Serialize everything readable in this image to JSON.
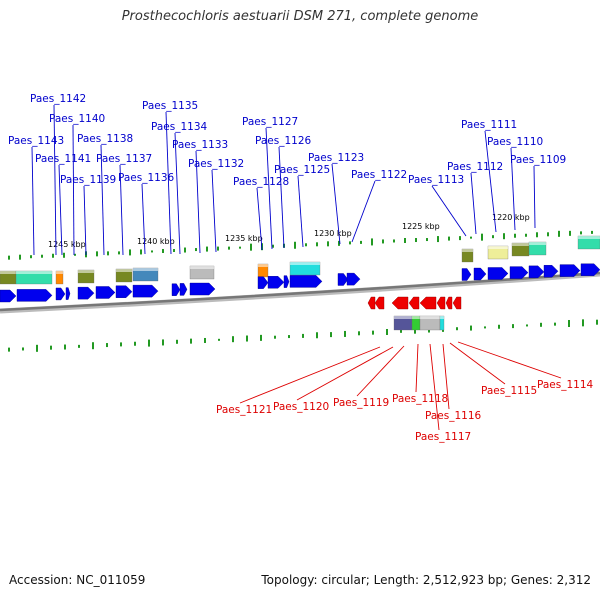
{
  "title": "Prosthecochloris aestuarii DSM 271, complete genome",
  "footer": {
    "accession": "Accession: NC_011059",
    "topology": "Topology: circular; Length: 2,512,923 bp; Genes: 2,312"
  },
  "colors": {
    "forward_label": "#0000cc",
    "reverse_label": "#dd0000",
    "forward_arrow": "#0000ee",
    "reverse_arrow": "#ee0000",
    "backbone": "#777777"
  },
  "ticks": [
    "1245 kbp",
    "1240 kbp",
    "1235 kbp",
    "1230 kbp",
    "1225 kbp",
    "1220 kbp"
  ],
  "forward_genes": [
    "Paes_1143",
    "Paes_1142",
    "Paes_1141",
    "Paes_1140",
    "Paes_1139",
    "Paes_1138",
    "Paes_1137",
    "Paes_1136",
    "Paes_1135",
    "Paes_1134",
    "Paes_1133",
    "Paes_1132",
    "Paes_1128",
    "Paes_1127",
    "Paes_1126",
    "Paes_1125",
    "Paes_1123",
    "Paes_1122",
    "Paes_1113",
    "Paes_1112",
    "Paes_1111",
    "Paes_1110",
    "Paes_1109"
  ],
  "reverse_genes": [
    "Paes_1121",
    "Paes_1120",
    "Paes_1119",
    "Paes_1118",
    "Paes_1117",
    "Paes_1116",
    "Paes_1115",
    "Paes_1114"
  ]
}
